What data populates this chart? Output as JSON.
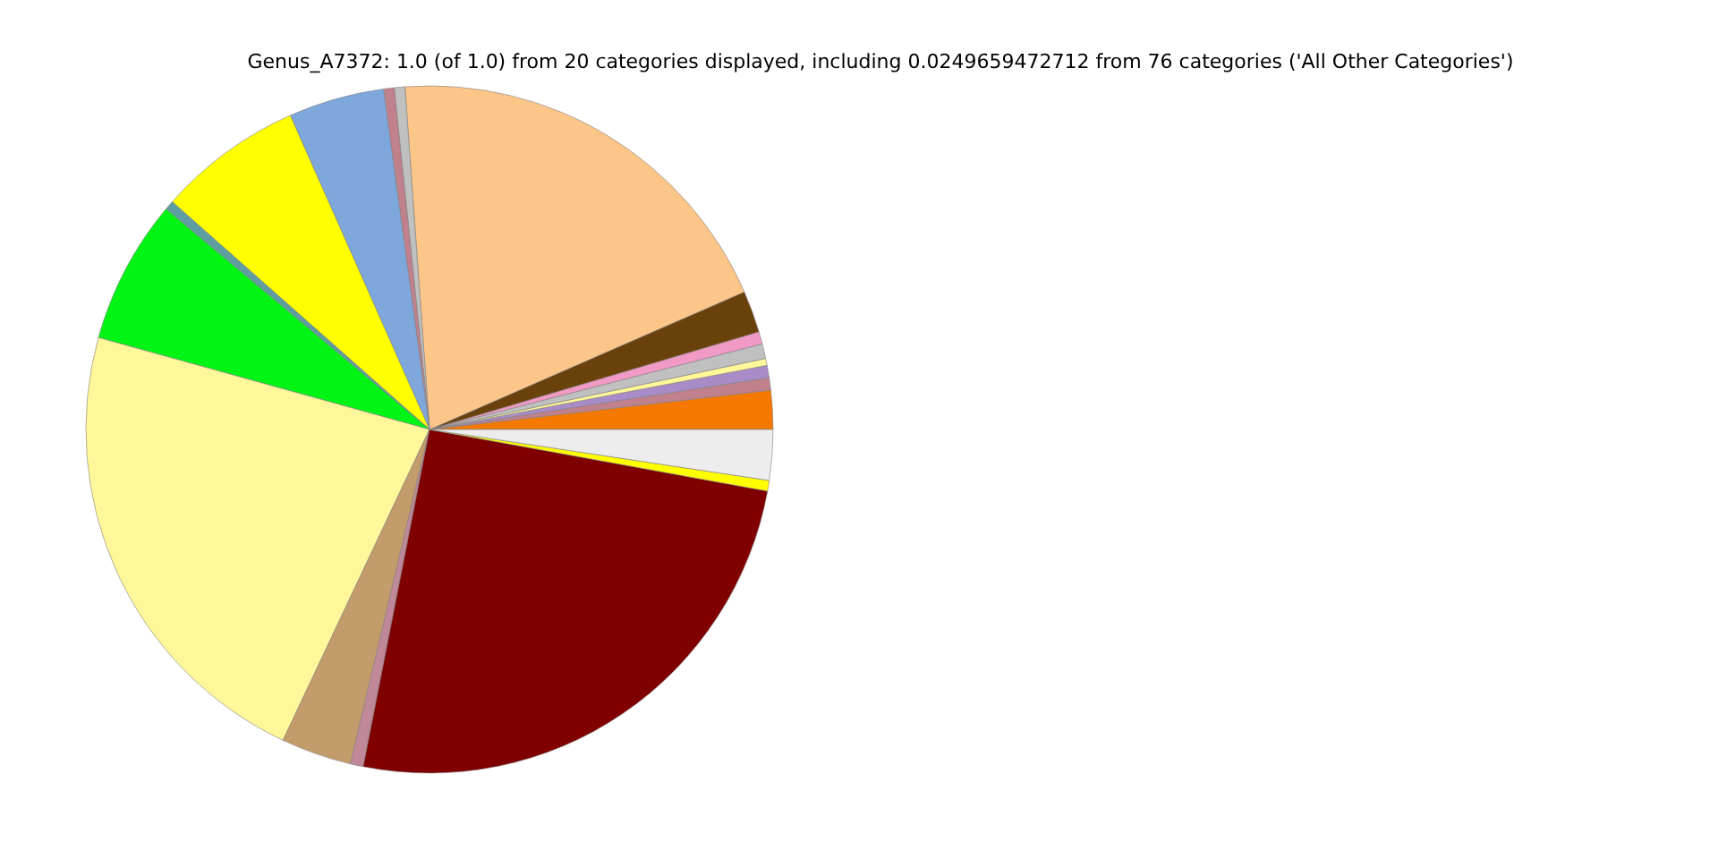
{
  "chart_data": {
    "type": "pie",
    "title": "Genus_A7372: 1.0 (of 1.0) from 20 categories displayed, including 0.0249659472712 from 76 categories ('All Other Categories')",
    "categories": [
      null,
      null,
      null,
      null,
      null,
      null,
      null,
      null,
      null,
      null,
      null,
      null,
      null,
      null,
      null,
      null,
      null,
      null,
      null,
      null
    ],
    "values": [
      1.83,
      0.58,
      0.58,
      0.33,
      0.69,
      0.58,
      1.97,
      19.58,
      0.5,
      0.5,
      4.5,
      6.83,
      0.44,
      6.78,
      22.3,
      3.31,
      0.61,
      25.22,
      0.5,
      2.37
    ],
    "colors": [
      "#f57900",
      "#c0808c",
      "#a88cc8",
      "#fff799",
      "#c0c0c0",
      "#f29ac6",
      "#6b410b",
      "#fdc689",
      "#c0c0c0",
      "#c0808c",
      "#7ea7db",
      "#ffff00",
      "#5f9ea0",
      "#00f514",
      "#fff799",
      "#c49c6b",
      "#c08898",
      "#800000",
      "#ffff00",
      "#ededed"
    ]
  }
}
